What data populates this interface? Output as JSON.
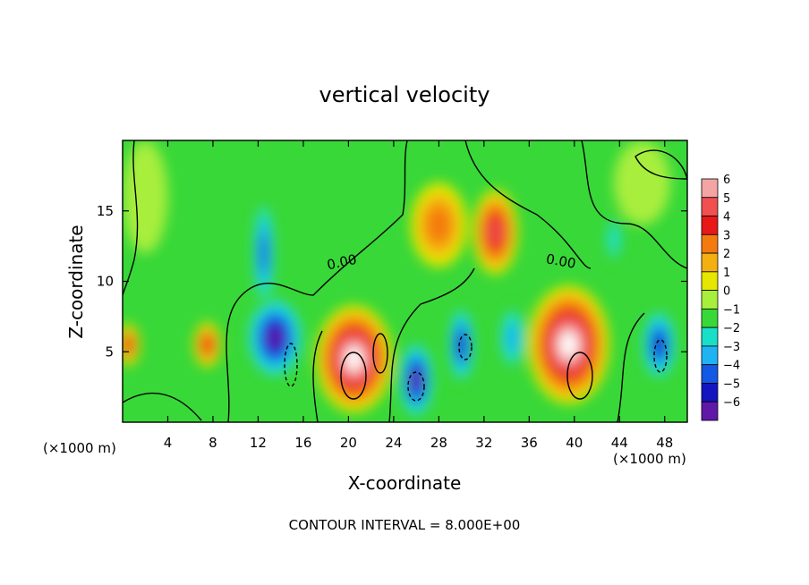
{
  "chart_data": {
    "type": "heatmap",
    "title": "vertical velocity",
    "xlabel": "X-coordinate",
    "ylabel": "Z-coordinate",
    "x_unit_left": "(×1000 m)",
    "x_unit_right": "(×1000 m)",
    "xlim": [
      0,
      50
    ],
    "ylim": [
      0,
      20
    ],
    "x_ticks": [
      4,
      8,
      12,
      16,
      20,
      24,
      28,
      32,
      36,
      40,
      44,
      48
    ],
    "y_ticks": [
      5,
      10,
      15
    ],
    "colorbar": {
      "levels": [
        6,
        5,
        4,
        3,
        2,
        1,
        0,
        -1,
        -2,
        -3,
        -4,
        -5,
        -6
      ],
      "labels": [
        "6",
        "5",
        "4",
        "3",
        "2",
        "1",
        "0",
        "−1",
        "−2",
        "−3",
        "−4",
        "−5",
        "−6"
      ],
      "colors": [
        "#f4a4a4",
        "#f05050",
        "#e81818",
        "#f47a10",
        "#f4b010",
        "#e6e600",
        "#a8ee3c",
        "#38d838",
        "#18e0c8",
        "#1eb4f4",
        "#1458e6",
        "#1414c0",
        "#6018a8"
      ]
    },
    "contour_interval_label": "CONTOUR INTERVAL = 8.000E+00",
    "contour_labels": [
      "0.00",
      "0.00"
    ],
    "cells": [
      {
        "x": 0.5,
        "z": 5.5,
        "v": 4,
        "rx": 1.0,
        "rz": 1.5
      },
      {
        "x": 7.5,
        "z": 5.5,
        "v": 3.5,
        "rx": 1.2,
        "rz": 1.6
      },
      {
        "x": 13.5,
        "z": 6.0,
        "v": -6,
        "rx": 2.6,
        "rz": 3.0
      },
      {
        "x": 12.5,
        "z": 12.0,
        "v": -4,
        "rx": 1.0,
        "rz": 4.0
      },
      {
        "x": 20.5,
        "z": 4.5,
        "v": 7,
        "rx": 3.4,
        "rz": 3.8
      },
      {
        "x": 26.0,
        "z": 3.0,
        "v": -6,
        "rx": 1.6,
        "rz": 2.8
      },
      {
        "x": 30.0,
        "z": 5.5,
        "v": -5,
        "rx": 1.2,
        "rz": 2.8
      },
      {
        "x": 28.0,
        "z": 14.0,
        "v": 2.5,
        "rx": 2.5,
        "rz": 3.0
      },
      {
        "x": 33.0,
        "z": 13.5,
        "v": 5,
        "rx": 2.0,
        "rz": 3.0
      },
      {
        "x": 34.5,
        "z": 6.0,
        "v": -3,
        "rx": 1.2,
        "rz": 2.4
      },
      {
        "x": 39.5,
        "z": 5.5,
        "v": 7,
        "rx": 3.6,
        "rz": 4.2
      },
      {
        "x": 43.5,
        "z": 13.0,
        "v": -2,
        "rx": 0.8,
        "rz": 1.8
      },
      {
        "x": 47.5,
        "z": 5.5,
        "v": -5,
        "rx": 1.6,
        "rz": 2.6
      },
      {
        "x": 2.0,
        "z": 16.0,
        "v": -0.5,
        "rx": 2.0,
        "rz": 4.0
      },
      {
        "x": 46.0,
        "z": 17.0,
        "v": -0.5,
        "rx": 2.5,
        "rz": 3.0
      }
    ]
  }
}
